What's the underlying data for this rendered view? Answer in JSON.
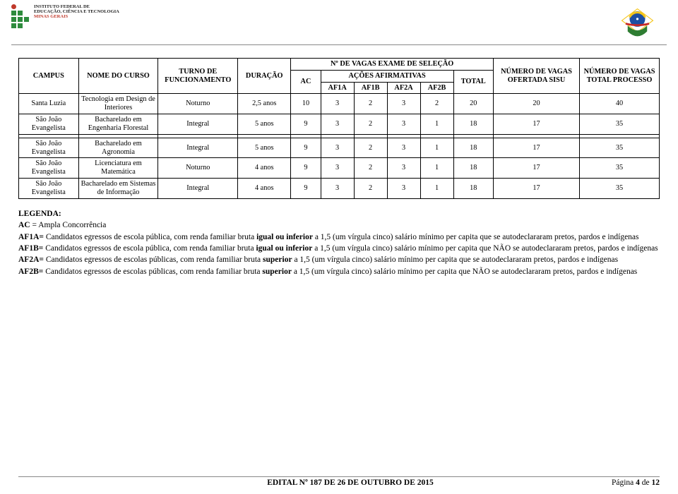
{
  "header": {
    "institute_line1": "INSTITUTO FEDERAL DE",
    "institute_line2": "EDUCAÇÃO, CIÊNCIA E TECNOLOGIA",
    "institute_line3": "MINAS GERAIS"
  },
  "table": {
    "colgroup_vagas": "Nº DE VAGAS EXAME DE SELEÇÃO",
    "colgroup_acoes": "AÇÕES AFIRMATIVAS",
    "headers": {
      "campus": "CAMPUS",
      "nome_curso": "NOME DO CURSO",
      "turno": "TURNO DE FUNCIONAMENTO",
      "duracao": "DURAÇÃO",
      "ac": "AC",
      "af1a": "AF1A",
      "af1b": "AF1B",
      "af2a": "AF2A",
      "af2b": "AF2B",
      "total": "TOTAL",
      "ofertada": "NÚMERO DE VAGAS OFERTADA SISU",
      "total_processo": "NÚMERO DE VAGAS TOTAL PROCESSO"
    },
    "rows": [
      {
        "campus": "Santa Luzia",
        "curso": "Tecnologia em Design de Interiores",
        "turno": "Noturno",
        "duracao": "2,5 anos",
        "ac": "10",
        "af1a": "3",
        "af1b": "2",
        "af2a": "3",
        "af2b": "2",
        "total": "20",
        "ofertada": "20",
        "processo": "40"
      },
      {
        "campus": "São João Evangelista",
        "curso": "Bacharelado em Engenharia Florestal",
        "turno": "Integral",
        "duracao": "5 anos",
        "ac": "9",
        "af1a": "3",
        "af1b": "2",
        "af2a": "3",
        "af2b": "1",
        "total": "18",
        "ofertada": "17",
        "processo": "35"
      },
      {
        "campus": "São João Evangelista",
        "curso": "Bacharelado em Agronomia",
        "turno": "Integral",
        "duracao": "5 anos",
        "ac": "9",
        "af1a": "3",
        "af1b": "2",
        "af2a": "3",
        "af2b": "1",
        "total": "18",
        "ofertada": "17",
        "processo": "35"
      },
      {
        "campus": "São João Evangelista",
        "curso": "Licenciatura em Matemática",
        "turno": "Noturno",
        "duracao": "4 anos",
        "ac": "9",
        "af1a": "3",
        "af1b": "2",
        "af2a": "3",
        "af2b": "1",
        "total": "18",
        "ofertada": "17",
        "processo": "35"
      },
      {
        "campus": "São João Evangelista",
        "curso": "Bacharelado em Sistemas de Informação",
        "turno": "Integral",
        "duracao": "4 anos",
        "ac": "9",
        "af1a": "3",
        "af1b": "2",
        "af2a": "3",
        "af2b": "1",
        "total": "18",
        "ofertada": "17",
        "processo": "35"
      }
    ]
  },
  "legend": {
    "title": "LEGENDA:",
    "ac_label": "AC",
    "ac_text": " = Ampla Concorrência",
    "af1a_label": "AF1A=",
    "af1a_text": " Candidatos egressos de escola pública, com renda familiar bruta ",
    "af1a_bold": "igual ou inferior",
    "af1a_text2": " a 1,5 (um vírgula cinco) salário mínimo per capita que se autodeclararam pretos, pardos e indígenas",
    "af1b_label": "AF1B=",
    "af1b_text": " Candidatos egressos de escola pública, com renda familiar bruta ",
    "af1b_bold": "igual ou inferior",
    "af1b_text2": " a 1,5 (um vírgula cinco) salário mínimo per capita que NÃO se autodeclararam pretos, pardos e indígenas",
    "af2a_label": "AF2A=",
    "af2a_text": " Candidatos egressos de escolas públicas, com renda familiar bruta ",
    "af2a_bold": "superior",
    "af2a_text2": " a 1,5 (um vírgula cinco) salário mínimo per capita que se autodeclararam pretos, pardos e indígenas",
    "af2b_label": "AF2B=",
    "af2b_text": " Candidatos egressos de escolas públicas, com renda familiar bruta ",
    "af2b_bold": "superior",
    "af2b_text2": " a 1,5 (um vírgula cinco) salário mínimo per capita que NÃO se autodeclararam pretos, pardos e indígenas"
  },
  "footer": {
    "edital": "EDITAL Nº 187 DE 26 DE OUTUBRO DE 2015",
    "page_prefix": "Página ",
    "page_num": "4",
    "page_mid": " de ",
    "page_total": "12"
  }
}
